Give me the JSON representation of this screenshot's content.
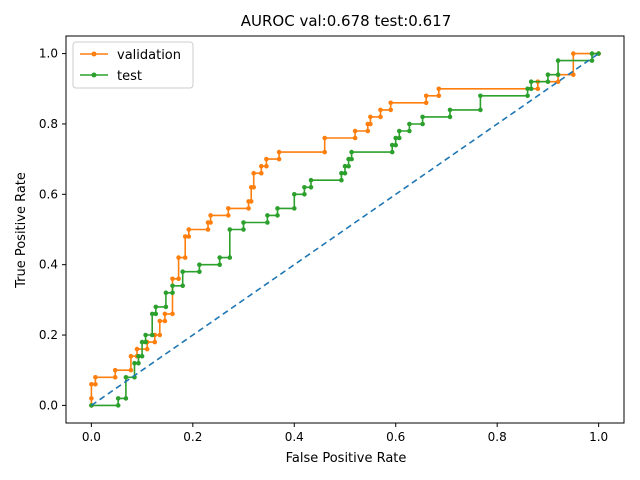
{
  "chart_data": {
    "type": "line",
    "title": "AUROC val:0.678  test:0.617",
    "xlabel": "False Positive Rate",
    "ylabel": "True Positive Rate",
    "xlim": [
      -0.05,
      1.05
    ],
    "ylim": [
      -0.05,
      1.05
    ],
    "xticks": [
      "0.0",
      "0.2",
      "0.4",
      "0.6",
      "0.8",
      "1.0"
    ],
    "yticks": [
      "0.0",
      "0.2",
      "0.4",
      "0.6",
      "0.8",
      "1.0"
    ],
    "grid": false,
    "legend_position": "top-left",
    "series": [
      {
        "name": "validation",
        "color": "#ff7f0e",
        "style": "step-markers",
        "points": [
          [
            0,
            0
          ],
          [
            0,
            0.02
          ],
          [
            0,
            0.06
          ],
          [
            0.008,
            0.06
          ],
          [
            0.008,
            0.08
          ],
          [
            0.047,
            0.08
          ],
          [
            0.047,
            0.1
          ],
          [
            0.078,
            0.1
          ],
          [
            0.078,
            0.14
          ],
          [
            0.09,
            0.14
          ],
          [
            0.09,
            0.16
          ],
          [
            0.11,
            0.16
          ],
          [
            0.11,
            0.18
          ],
          [
            0.125,
            0.18
          ],
          [
            0.125,
            0.2
          ],
          [
            0.135,
            0.2
          ],
          [
            0.135,
            0.24
          ],
          [
            0.145,
            0.24
          ],
          [
            0.145,
            0.26
          ],
          [
            0.16,
            0.26
          ],
          [
            0.16,
            0.36
          ],
          [
            0.172,
            0.36
          ],
          [
            0.172,
            0.42
          ],
          [
            0.185,
            0.42
          ],
          [
            0.185,
            0.48
          ],
          [
            0.192,
            0.48
          ],
          [
            0.192,
            0.5
          ],
          [
            0.23,
            0.5
          ],
          [
            0.23,
            0.52
          ],
          [
            0.235,
            0.52
          ],
          [
            0.235,
            0.54
          ],
          [
            0.27,
            0.54
          ],
          [
            0.27,
            0.56
          ],
          [
            0.31,
            0.56
          ],
          [
            0.31,
            0.58
          ],
          [
            0.315,
            0.58
          ],
          [
            0.315,
            0.62
          ],
          [
            0.32,
            0.62
          ],
          [
            0.32,
            0.66
          ],
          [
            0.335,
            0.66
          ],
          [
            0.335,
            0.68
          ],
          [
            0.345,
            0.68
          ],
          [
            0.345,
            0.7
          ],
          [
            0.37,
            0.7
          ],
          [
            0.37,
            0.72
          ],
          [
            0.46,
            0.72
          ],
          [
            0.46,
            0.76
          ],
          [
            0.52,
            0.76
          ],
          [
            0.52,
            0.78
          ],
          [
            0.545,
            0.78
          ],
          [
            0.545,
            0.8
          ],
          [
            0.55,
            0.8
          ],
          [
            0.55,
            0.82
          ],
          [
            0.57,
            0.82
          ],
          [
            0.57,
            0.84
          ],
          [
            0.59,
            0.84
          ],
          [
            0.59,
            0.86
          ],
          [
            0.66,
            0.86
          ],
          [
            0.66,
            0.88
          ],
          [
            0.685,
            0.88
          ],
          [
            0.685,
            0.9
          ],
          [
            0.88,
            0.9
          ],
          [
            0.88,
            0.92
          ],
          [
            0.92,
            0.92
          ],
          [
            0.92,
            0.94
          ],
          [
            0.95,
            0.94
          ],
          [
            0.95,
            1.0
          ],
          [
            1.0,
            1.0
          ]
        ]
      },
      {
        "name": "test",
        "color": "#2ca02c",
        "style": "step-markers",
        "points": [
          [
            0,
            0
          ],
          [
            0.053,
            0
          ],
          [
            0.053,
            0.02
          ],
          [
            0.068,
            0.02
          ],
          [
            0.068,
            0.08
          ],
          [
            0.085,
            0.08
          ],
          [
            0.085,
            0.12
          ],
          [
            0.093,
            0.12
          ],
          [
            0.093,
            0.14
          ],
          [
            0.1,
            0.14
          ],
          [
            0.1,
            0.18
          ],
          [
            0.107,
            0.18
          ],
          [
            0.107,
            0.2
          ],
          [
            0.12,
            0.2
          ],
          [
            0.12,
            0.26
          ],
          [
            0.127,
            0.26
          ],
          [
            0.127,
            0.28
          ],
          [
            0.147,
            0.28
          ],
          [
            0.147,
            0.32
          ],
          [
            0.16,
            0.32
          ],
          [
            0.16,
            0.34
          ],
          [
            0.18,
            0.34
          ],
          [
            0.18,
            0.38
          ],
          [
            0.213,
            0.38
          ],
          [
            0.213,
            0.4
          ],
          [
            0.253,
            0.4
          ],
          [
            0.253,
            0.42
          ],
          [
            0.273,
            0.42
          ],
          [
            0.273,
            0.5
          ],
          [
            0.3,
            0.5
          ],
          [
            0.3,
            0.52
          ],
          [
            0.347,
            0.52
          ],
          [
            0.347,
            0.54
          ],
          [
            0.367,
            0.54
          ],
          [
            0.367,
            0.56
          ],
          [
            0.4,
            0.56
          ],
          [
            0.4,
            0.6
          ],
          [
            0.42,
            0.6
          ],
          [
            0.42,
            0.62
          ],
          [
            0.433,
            0.62
          ],
          [
            0.433,
            0.64
          ],
          [
            0.493,
            0.64
          ],
          [
            0.493,
            0.66
          ],
          [
            0.5,
            0.66
          ],
          [
            0.5,
            0.68
          ],
          [
            0.507,
            0.68
          ],
          [
            0.507,
            0.7
          ],
          [
            0.513,
            0.7
          ],
          [
            0.513,
            0.72
          ],
          [
            0.593,
            0.72
          ],
          [
            0.593,
            0.74
          ],
          [
            0.6,
            0.74
          ],
          [
            0.6,
            0.76
          ],
          [
            0.607,
            0.76
          ],
          [
            0.607,
            0.78
          ],
          [
            0.627,
            0.78
          ],
          [
            0.627,
            0.8
          ],
          [
            0.653,
            0.8
          ],
          [
            0.653,
            0.82
          ],
          [
            0.707,
            0.82
          ],
          [
            0.707,
            0.84
          ],
          [
            0.767,
            0.84
          ],
          [
            0.767,
            0.88
          ],
          [
            0.86,
            0.88
          ],
          [
            0.86,
            0.9
          ],
          [
            0.867,
            0.9
          ],
          [
            0.867,
            0.92
          ],
          [
            0.9,
            0.92
          ],
          [
            0.9,
            0.94
          ],
          [
            0.92,
            0.94
          ],
          [
            0.92,
            0.98
          ],
          [
            0.987,
            0.98
          ],
          [
            0.987,
            1.0
          ],
          [
            1.0,
            1.0
          ]
        ]
      },
      {
        "name": "",
        "color": "#1f77b4",
        "style": "dashed",
        "points": [
          [
            0,
            0
          ],
          [
            1,
            1
          ]
        ]
      }
    ]
  }
}
